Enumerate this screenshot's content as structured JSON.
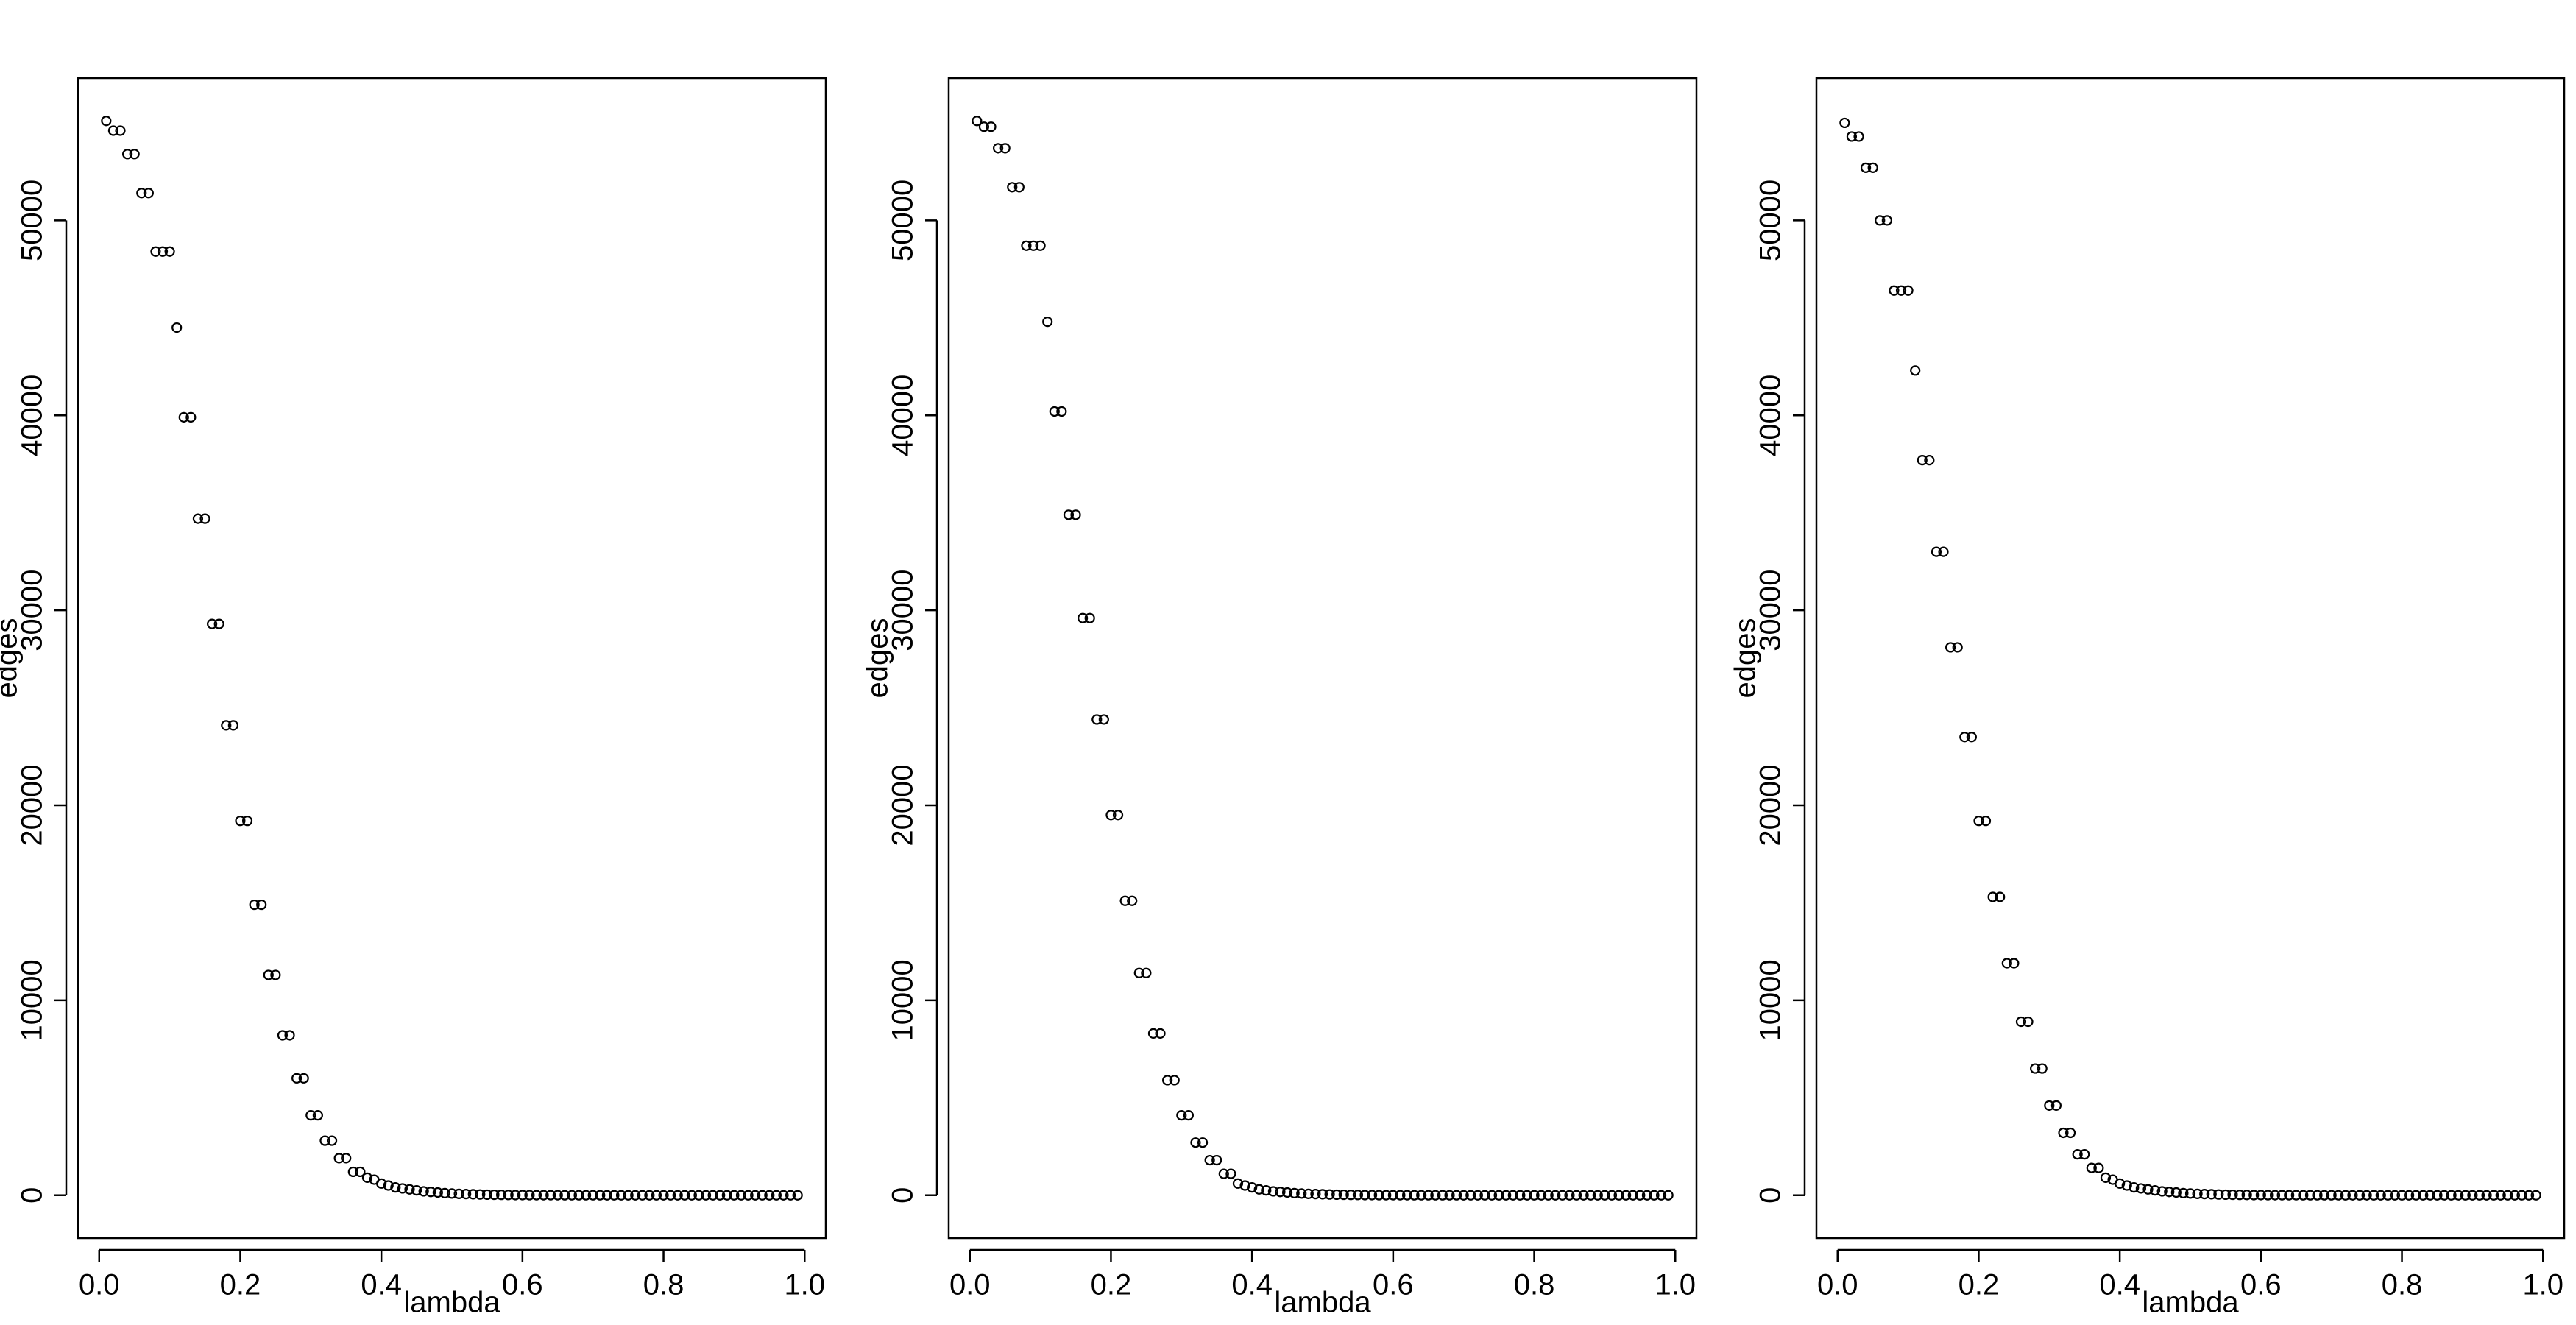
{
  "chart_data": [
    {
      "type": "scatter",
      "x_label": "lambda",
      "y_label": "edges",
      "color": "#000000",
      "xlim": [
        -0.03,
        1.03
      ],
      "ylim": [
        -2200,
        57300
      ],
      "xticks": [
        {
          "value": 0,
          "label": "0.0"
        },
        0.2,
        0.4,
        0.6,
        0.8,
        {
          "value": 1,
          "label": "1.0"
        }
      ],
      "yticks": [
        0,
        10000,
        20000,
        30000,
        40000,
        50000
      ],
      "x": [
        0.01,
        0.02,
        0.03,
        0.04,
        0.05,
        0.06,
        0.07,
        0.08,
        0.09,
        0.1,
        0.11,
        0.12,
        0.13,
        0.14,
        0.15,
        0.16,
        0.17,
        0.18,
        0.19,
        0.2,
        0.21,
        0.22,
        0.23,
        0.24,
        0.25,
        0.26,
        0.27,
        0.28,
        0.29,
        0.3,
        0.31,
        0.32,
        0.33,
        0.34,
        0.35,
        0.36,
        0.37,
        0.38,
        0.39,
        0.4,
        0.41,
        0.42,
        0.43,
        0.44,
        0.45,
        0.46,
        0.47,
        0.48,
        0.49,
        0.5,
        0.51,
        0.52,
        0.53,
        0.54,
        0.55,
        0.56,
        0.57,
        0.58,
        0.59,
        0.6,
        0.61,
        0.62,
        0.63,
        0.64,
        0.65,
        0.66,
        0.67,
        0.68,
        0.69,
        0.7,
        0.71,
        0.72,
        0.73,
        0.74,
        0.75,
        0.76,
        0.77,
        0.78,
        0.79,
        0.8,
        0.81,
        0.82,
        0.83,
        0.84,
        0.85,
        0.86,
        0.87,
        0.88,
        0.89,
        0.9,
        0.91,
        0.92,
        0.93,
        0.94,
        0.95,
        0.96,
        0.97,
        0.98,
        0.99
      ],
      "values": [
        55100,
        54600,
        54600,
        53400,
        53400,
        51400,
        51400,
        48400,
        48400,
        48400,
        44500,
        39900,
        39900,
        34700,
        34700,
        29300,
        29300,
        24100,
        24100,
        19200,
        19200,
        14900,
        14900,
        11300,
        11300,
        8200,
        8200,
        6000,
        6000,
        4100,
        4100,
        2800,
        2800,
        1900,
        1900,
        1200,
        1200,
        900,
        800,
        600,
        500,
        400,
        350,
        300,
        250,
        200,
        170,
        140,
        110,
        90,
        70,
        60,
        50,
        40,
        30,
        25,
        20,
        15,
        10,
        8,
        6,
        5,
        4,
        3,
        3,
        2,
        2,
        1,
        1,
        1,
        1,
        0,
        0,
        0,
        0,
        0,
        0,
        0,
        0,
        0,
        0,
        0,
        0,
        0,
        0,
        0,
        0,
        0,
        0,
        0,
        0,
        0,
        0,
        0,
        0,
        0,
        0,
        0,
        0
      ]
    },
    {
      "type": "scatter",
      "x_label": "lambda",
      "y_label": "edges",
      "color": "#000000",
      "xlim": [
        -0.03,
        1.03
      ],
      "ylim": [
        -2200,
        57300
      ],
      "xticks": [
        {
          "value": 0,
          "label": "0.0"
        },
        0.2,
        0.4,
        0.6,
        0.8,
        {
          "value": 1,
          "label": "1.0"
        }
      ],
      "yticks": [
        0,
        10000,
        20000,
        30000,
        40000,
        50000
      ],
      "x": [
        0.01,
        0.02,
        0.03,
        0.04,
        0.05,
        0.06,
        0.07,
        0.08,
        0.09,
        0.1,
        0.11,
        0.12,
        0.13,
        0.14,
        0.15,
        0.16,
        0.17,
        0.18,
        0.19,
        0.2,
        0.21,
        0.22,
        0.23,
        0.24,
        0.25,
        0.26,
        0.27,
        0.28,
        0.29,
        0.3,
        0.31,
        0.32,
        0.33,
        0.34,
        0.35,
        0.36,
        0.37,
        0.38,
        0.39,
        0.4,
        0.41,
        0.42,
        0.43,
        0.44,
        0.45,
        0.46,
        0.47,
        0.48,
        0.49,
        0.5,
        0.51,
        0.52,
        0.53,
        0.54,
        0.55,
        0.56,
        0.57,
        0.58,
        0.59,
        0.6,
        0.61,
        0.62,
        0.63,
        0.64,
        0.65,
        0.66,
        0.67,
        0.68,
        0.69,
        0.7,
        0.71,
        0.72,
        0.73,
        0.74,
        0.75,
        0.76,
        0.77,
        0.78,
        0.79,
        0.8,
        0.81,
        0.82,
        0.83,
        0.84,
        0.85,
        0.86,
        0.87,
        0.88,
        0.89,
        0.9,
        0.91,
        0.92,
        0.93,
        0.94,
        0.95,
        0.96,
        0.97,
        0.98,
        0.99
      ],
      "values": [
        55100,
        54800,
        54800,
        53700,
        53700,
        51700,
        51700,
        48700,
        48700,
        48700,
        44800,
        40200,
        40200,
        34900,
        34900,
        29600,
        29600,
        24400,
        24400,
        19500,
        19500,
        15100,
        15100,
        11400,
        11400,
        8300,
        8300,
        5900,
        5900,
        4100,
        4100,
        2700,
        2700,
        1800,
        1800,
        1100,
        1100,
        600,
        500,
        400,
        300,
        250,
        200,
        170,
        140,
        110,
        90,
        70,
        60,
        50,
        40,
        30,
        25,
        20,
        15,
        10,
        8,
        6,
        5,
        4,
        3,
        3,
        2,
        2,
        1,
        1,
        1,
        1,
        1,
        0,
        0,
        0,
        0,
        0,
        0,
        0,
        0,
        0,
        0,
        0,
        0,
        0,
        0,
        0,
        0,
        0,
        0,
        0,
        0,
        0,
        0,
        0,
        0,
        0,
        0,
        0,
        0,
        0,
        0
      ]
    },
    {
      "type": "scatter",
      "x_label": "lambda",
      "y_label": "edges",
      "color": "#000000",
      "xlim": [
        -0.03,
        1.03
      ],
      "ylim": [
        -2200,
        57300
      ],
      "xticks": [
        {
          "value": 0,
          "label": "0.0"
        },
        0.2,
        0.4,
        0.6,
        0.8,
        {
          "value": 1,
          "label": "1.0"
        }
      ],
      "yticks": [
        0,
        10000,
        20000,
        30000,
        40000,
        50000
      ],
      "x": [
        0.01,
        0.02,
        0.03,
        0.04,
        0.05,
        0.06,
        0.07,
        0.08,
        0.09,
        0.1,
        0.11,
        0.12,
        0.13,
        0.14,
        0.15,
        0.16,
        0.17,
        0.18,
        0.19,
        0.2,
        0.21,
        0.22,
        0.23,
        0.24,
        0.25,
        0.26,
        0.27,
        0.28,
        0.29,
        0.3,
        0.31,
        0.32,
        0.33,
        0.34,
        0.35,
        0.36,
        0.37,
        0.38,
        0.39,
        0.4,
        0.41,
        0.42,
        0.43,
        0.44,
        0.45,
        0.46,
        0.47,
        0.48,
        0.49,
        0.5,
        0.51,
        0.52,
        0.53,
        0.54,
        0.55,
        0.56,
        0.57,
        0.58,
        0.59,
        0.6,
        0.61,
        0.62,
        0.63,
        0.64,
        0.65,
        0.66,
        0.67,
        0.68,
        0.69,
        0.7,
        0.71,
        0.72,
        0.73,
        0.74,
        0.75,
        0.76,
        0.77,
        0.78,
        0.79,
        0.8,
        0.81,
        0.82,
        0.83,
        0.84,
        0.85,
        0.86,
        0.87,
        0.88,
        0.89,
        0.9,
        0.91,
        0.92,
        0.93,
        0.94,
        0.95,
        0.96,
        0.97,
        0.98,
        0.99
      ],
      "values": [
        55000,
        54300,
        54300,
        52700,
        52700,
        50000,
        50000,
        46400,
        46400,
        46400,
        42300,
        37700,
        37700,
        33000,
        33000,
        28100,
        28100,
        23500,
        23500,
        19200,
        19200,
        15300,
        15300,
        11900,
        11900,
        8900,
        8900,
        6500,
        6500,
        4600,
        4600,
        3200,
        3200,
        2100,
        2100,
        1400,
        1400,
        900,
        800,
        600,
        500,
        400,
        350,
        300,
        250,
        200,
        170,
        140,
        110,
        90,
        70,
        60,
        50,
        40,
        30,
        25,
        20,
        15,
        10,
        8,
        6,
        5,
        4,
        3,
        3,
        2,
        2,
        1,
        1,
        1,
        1,
        0,
        0,
        0,
        0,
        0,
        0,
        0,
        0,
        0,
        0,
        0,
        0,
        0,
        0,
        0,
        0,
        0,
        0,
        0,
        0,
        0,
        0,
        0,
        0,
        0,
        0,
        0,
        0
      ]
    }
  ]
}
